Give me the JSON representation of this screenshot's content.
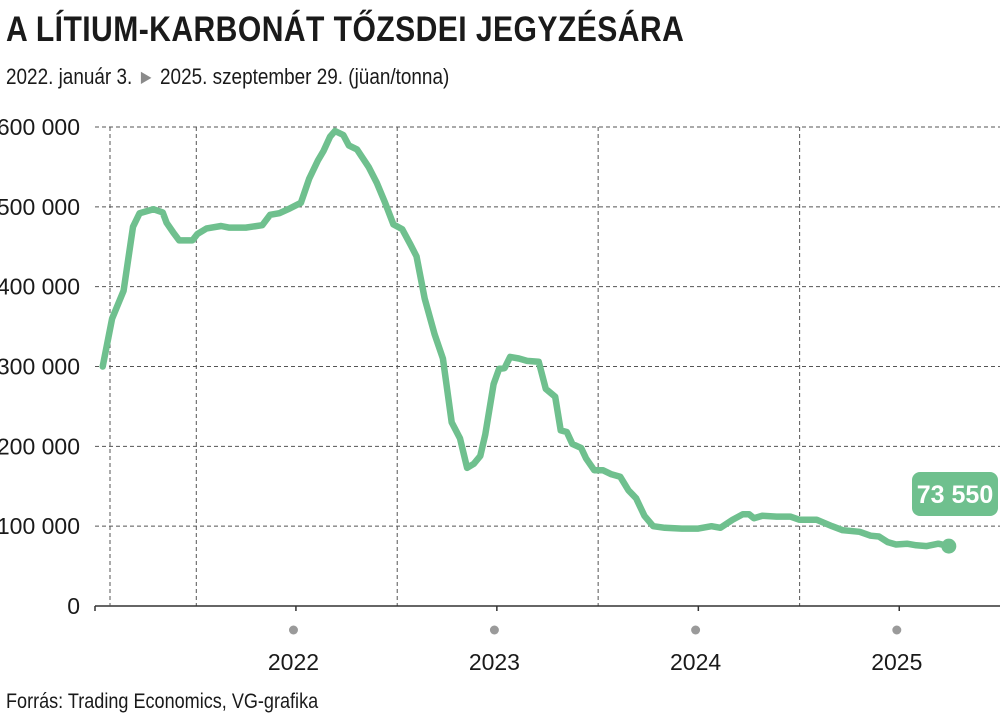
{
  "header": {
    "title": "A LÍTIUM-KARBONÁT TŐZSDEI JEGYZÉSÁRA",
    "date_from": "2022. január 3.",
    "date_to": "2025. szeptember 29. (jüan/tonna)",
    "arrow_icon": "triangle-right-icon"
  },
  "footer": {
    "source": "Forrás: Trading Economics, VG-grafika"
  },
  "colors": {
    "line": "#6fc08e",
    "grid": "#555555",
    "axis": "#333333",
    "year_dot": "#9a9a9a",
    "text": "#1a1a1a"
  },
  "chart_data": {
    "type": "line",
    "title": "A LÍTIUM-KARBONÁT TŐZSDEI JEGYZÉSÁRA",
    "xlabel": "",
    "ylabel": "jüan/tonna",
    "ylim": [
      0,
      600000
    ],
    "xlim": [
      "2021-07-01",
      "2025-12-31"
    ],
    "yticks": [
      0,
      100000,
      200000,
      300000,
      400000,
      500000,
      600000
    ],
    "ytick_labels": [
      "0",
      "100 000",
      "200 000",
      "300 000",
      "400 000",
      "500 000",
      "600 000"
    ],
    "xtick_labels": [
      "2022",
      "2023",
      "2024",
      "2025"
    ],
    "grid": true,
    "callout": {
      "label": "73 550",
      "value": 73550
    },
    "series": [
      {
        "name": "",
        "points": [
          [
            "2021-07-15",
            300000
          ],
          [
            "2021-08-01",
            360000
          ],
          [
            "2021-08-22",
            395000
          ],
          [
            "2021-09-08",
            475000
          ],
          [
            "2021-09-20",
            492000
          ],
          [
            "2021-10-15",
            497000
          ],
          [
            "2021-11-01",
            493000
          ],
          [
            "2021-11-08",
            480000
          ],
          [
            "2021-11-20",
            468000
          ],
          [
            "2021-12-01",
            458000
          ],
          [
            "2021-12-25",
            458000
          ],
          [
            "2022-01-03",
            466000
          ],
          [
            "2022-01-20",
            473000
          ],
          [
            "2022-02-15",
            476000
          ],
          [
            "2022-03-01",
            474000
          ],
          [
            "2022-04-01",
            474000
          ],
          [
            "2022-05-01",
            477000
          ],
          [
            "2022-05-15",
            490000
          ],
          [
            "2022-06-01",
            492000
          ],
          [
            "2022-06-20",
            498000
          ],
          [
            "2022-07-10",
            505000
          ],
          [
            "2022-07-25",
            535000
          ],
          [
            "2022-08-10",
            558000
          ],
          [
            "2022-08-20",
            570000
          ],
          [
            "2022-09-01",
            588000
          ],
          [
            "2022-09-10",
            595000
          ],
          [
            "2022-09-25",
            590000
          ],
          [
            "2022-10-05",
            577000
          ],
          [
            "2022-10-20",
            572000
          ],
          [
            "2022-11-10",
            550000
          ],
          [
            "2022-11-25",
            530000
          ],
          [
            "2022-12-10",
            505000
          ],
          [
            "2022-12-25",
            478000
          ],
          [
            "2023-01-10",
            472000
          ],
          [
            "2023-01-25",
            453000
          ],
          [
            "2023-02-05",
            438000
          ],
          [
            "2023-02-20",
            385000
          ],
          [
            "2023-03-10",
            340000
          ],
          [
            "2023-03-25",
            310000
          ],
          [
            "2023-04-10",
            230000
          ],
          [
            "2023-04-25",
            210000
          ],
          [
            "2023-05-08",
            173000
          ],
          [
            "2023-05-20",
            178000
          ],
          [
            "2023-06-01",
            188000
          ],
          [
            "2023-06-10",
            215000
          ],
          [
            "2023-06-25",
            278000
          ],
          [
            "2023-07-05",
            297000
          ],
          [
            "2023-07-15",
            298000
          ],
          [
            "2023-07-25",
            312000
          ],
          [
            "2023-08-10",
            310000
          ],
          [
            "2023-08-25",
            307000
          ],
          [
            "2023-09-15",
            306000
          ],
          [
            "2023-09-28",
            272000
          ],
          [
            "2023-10-15",
            262000
          ],
          [
            "2023-10-25",
            220000
          ],
          [
            "2023-11-05",
            218000
          ],
          [
            "2023-11-15",
            203000
          ],
          [
            "2023-12-01",
            198000
          ],
          [
            "2023-12-10",
            185000
          ],
          [
            "2023-12-25",
            170000
          ],
          [
            "2024-01-10",
            170000
          ],
          [
            "2024-01-25",
            165000
          ],
          [
            "2024-02-10",
            162000
          ],
          [
            "2024-02-25",
            145000
          ],
          [
            "2024-03-10",
            135000
          ],
          [
            "2024-03-25",
            113000
          ],
          [
            "2024-04-10",
            100000
          ],
          [
            "2024-05-01",
            98000
          ],
          [
            "2024-06-01",
            97000
          ],
          [
            "2024-07-01",
            97000
          ],
          [
            "2024-07-25",
            100000
          ],
          [
            "2024-08-10",
            98000
          ],
          [
            "2024-09-01",
            108000
          ],
          [
            "2024-09-20",
            115000
          ],
          [
            "2024-10-01",
            115000
          ],
          [
            "2024-10-10",
            110000
          ],
          [
            "2024-10-25",
            113000
          ],
          [
            "2024-11-20",
            112000
          ],
          [
            "2024-12-15",
            112000
          ],
          [
            "2025-01-01",
            108000
          ],
          [
            "2025-02-01",
            108000
          ],
          [
            "2025-03-01",
            100000
          ],
          [
            "2025-03-20",
            95000
          ],
          [
            "2025-04-20",
            93000
          ],
          [
            "2025-05-10",
            88000
          ],
          [
            "2025-05-25",
            87000
          ],
          [
            "2025-06-10",
            80000
          ],
          [
            "2025-06-25",
            77000
          ],
          [
            "2025-07-15",
            78000
          ],
          [
            "2025-08-01",
            76000
          ],
          [
            "2025-08-20",
            75000
          ],
          [
            "2025-09-10",
            78000
          ],
          [
            "2025-09-29",
            75000
          ]
        ]
      }
    ]
  }
}
